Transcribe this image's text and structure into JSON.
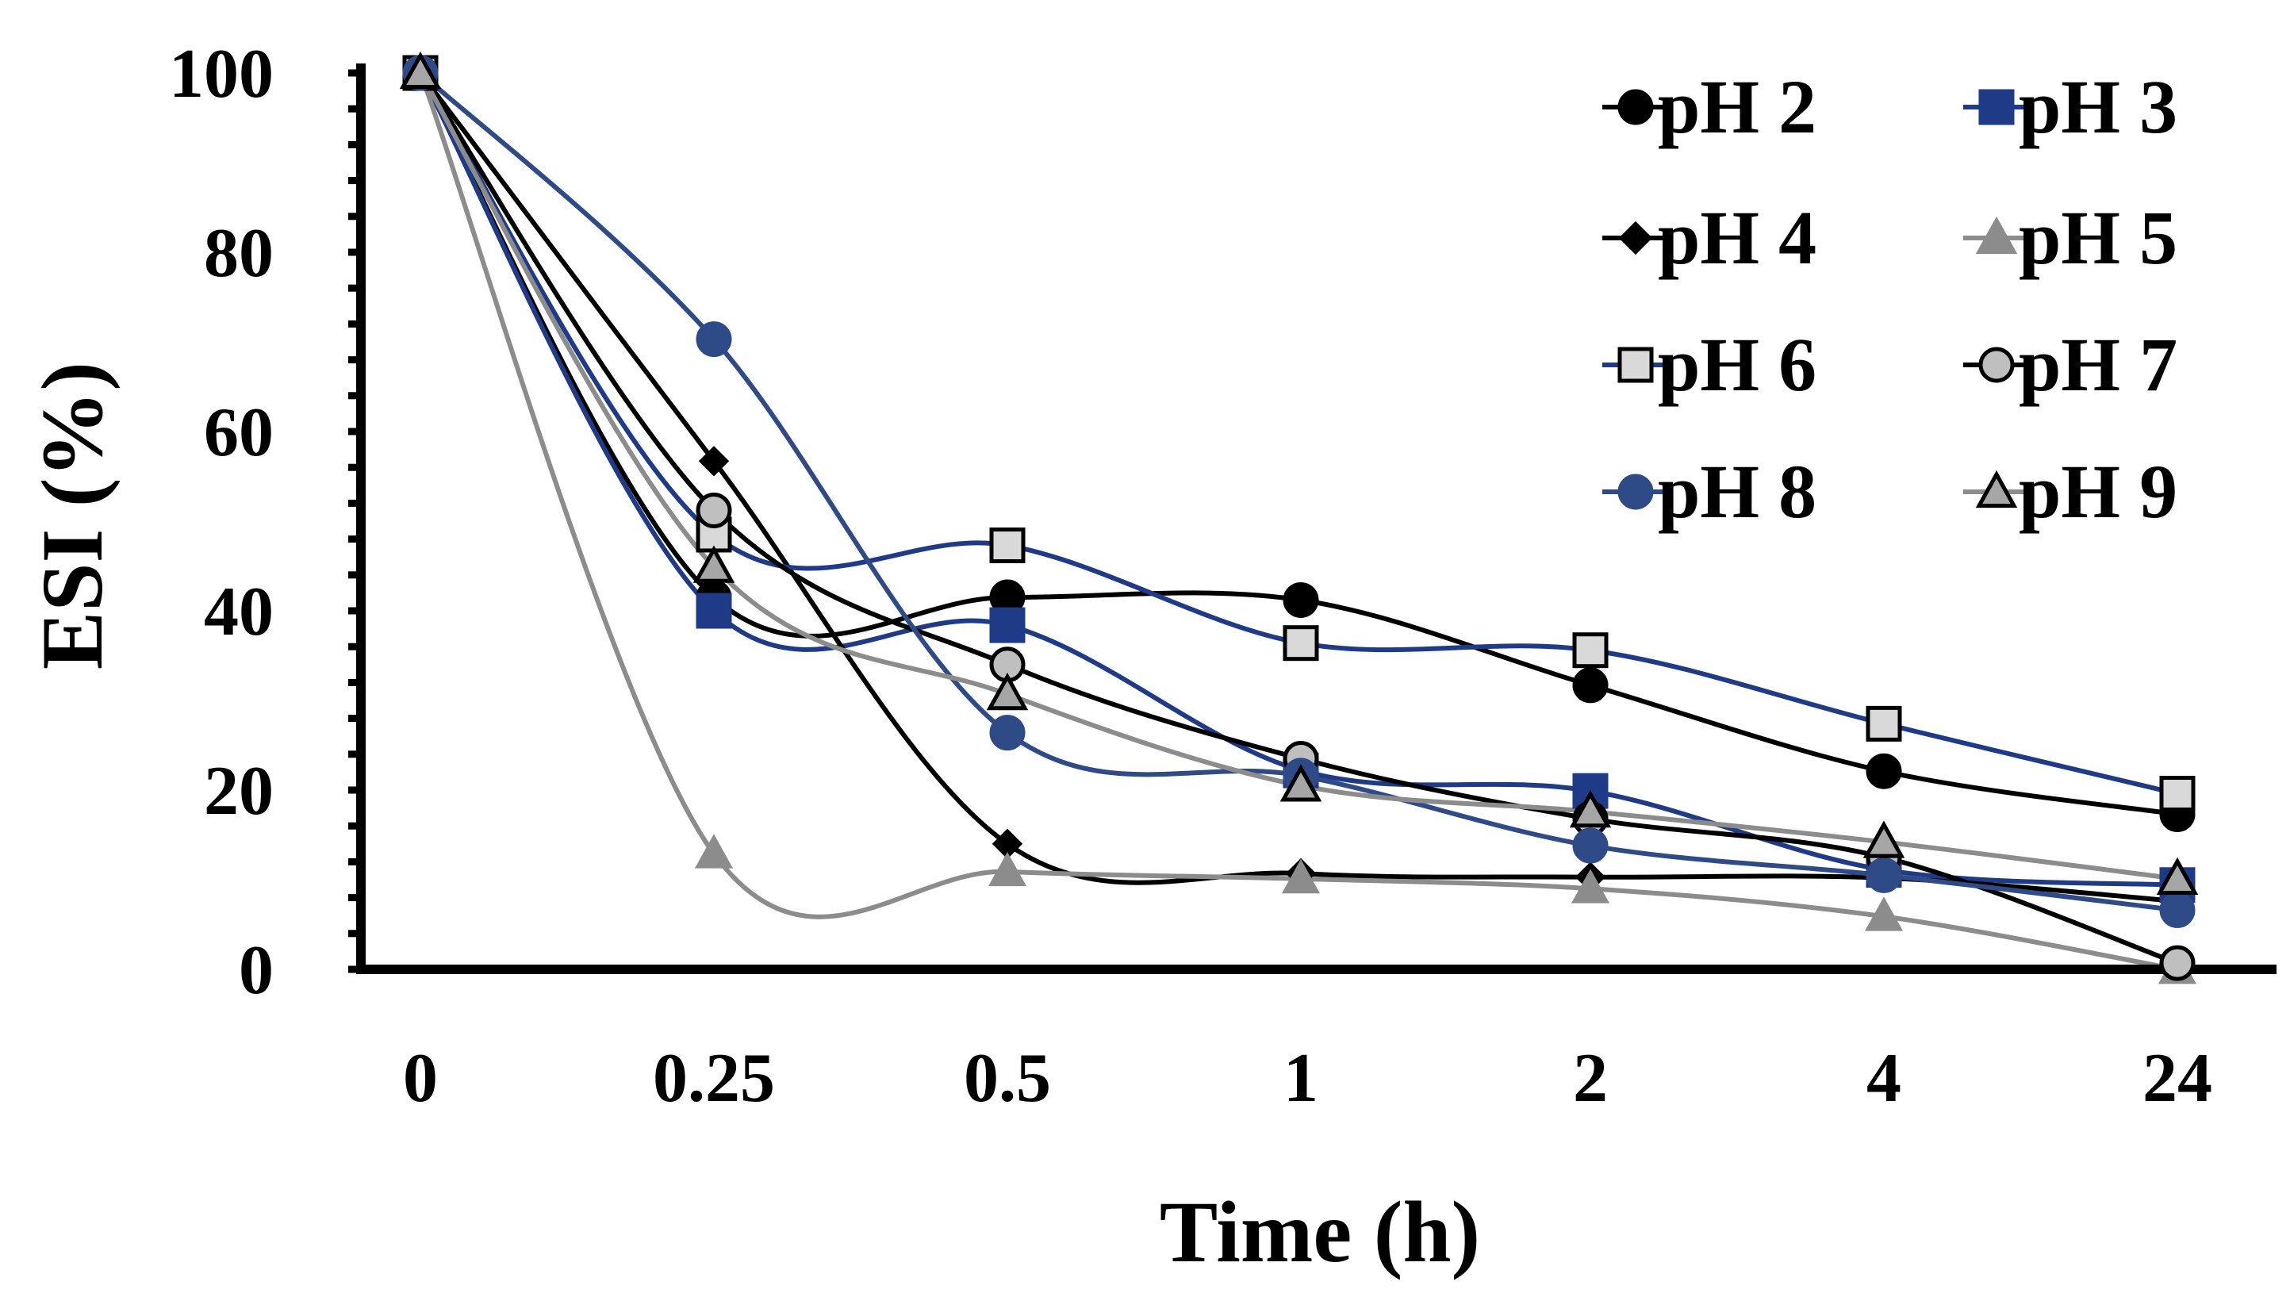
{
  "chart_data": {
    "type": "line",
    "title": "",
    "xlabel": "Time (h)",
    "ylabel": "ESI (%)",
    "categories": [
      "0",
      "0.25",
      "0.5",
      "1",
      "2",
      "4",
      "24"
    ],
    "ylim": [
      0,
      100
    ],
    "yticks": [
      "0",
      "20",
      "40",
      "60",
      "80",
      "100"
    ],
    "grid": false,
    "legend_position": "top-right",
    "series": [
      {
        "name": "pH 2",
        "marker": "circle",
        "color": "#000000",
        "fill": "#000000",
        "values": [
          100,
          41.5,
          41.5,
          41.2,
          31.7,
          22.1,
          17.3
        ]
      },
      {
        "name": "pH 3",
        "marker": "square",
        "color": "#1f3a87",
        "fill": "#1f3a87",
        "values": [
          100,
          40,
          38.4,
          22.2,
          19.9,
          11.1,
          9.4
        ]
      },
      {
        "name": "pH 4",
        "marker": "diamond",
        "color": "#000000",
        "fill": "#000000",
        "values": [
          100,
          56.7,
          14,
          10.7,
          10.3,
          10.2,
          7.6
        ]
      },
      {
        "name": "pH 5",
        "marker": "triangle",
        "color": "#8c8c8c",
        "fill": "#8c8c8c",
        "values": [
          100,
          12.9,
          10.9,
          10.1,
          9,
          5.9,
          0
        ]
      },
      {
        "name": "pH 6",
        "marker": "square-open",
        "color": "#1f3a87",
        "fill": "#d9d9d9",
        "values": [
          100,
          48.5,
          47.3,
          36.4,
          35.6,
          27.4,
          19.6
        ]
      },
      {
        "name": "pH 7",
        "marker": "circle-open",
        "color": "#000000",
        "fill": "#bfbfbf",
        "values": [
          100,
          51.2,
          34,
          23.5,
          16.8,
          12.5,
          0.7
        ]
      },
      {
        "name": "pH 8",
        "marker": "circle",
        "color": "#2e4a87",
        "fill": "#2e4a87",
        "values": [
          100,
          70.3,
          26.4,
          21.6,
          13.8,
          10.5,
          6.6
        ]
      },
      {
        "name": "pH 9",
        "marker": "triangle-open",
        "color": "#8c8c8c",
        "fill": "#a6a6a6",
        "values": [
          100,
          44.9,
          30.7,
          20.5,
          17.6,
          14.2,
          10.1
        ]
      }
    ]
  }
}
